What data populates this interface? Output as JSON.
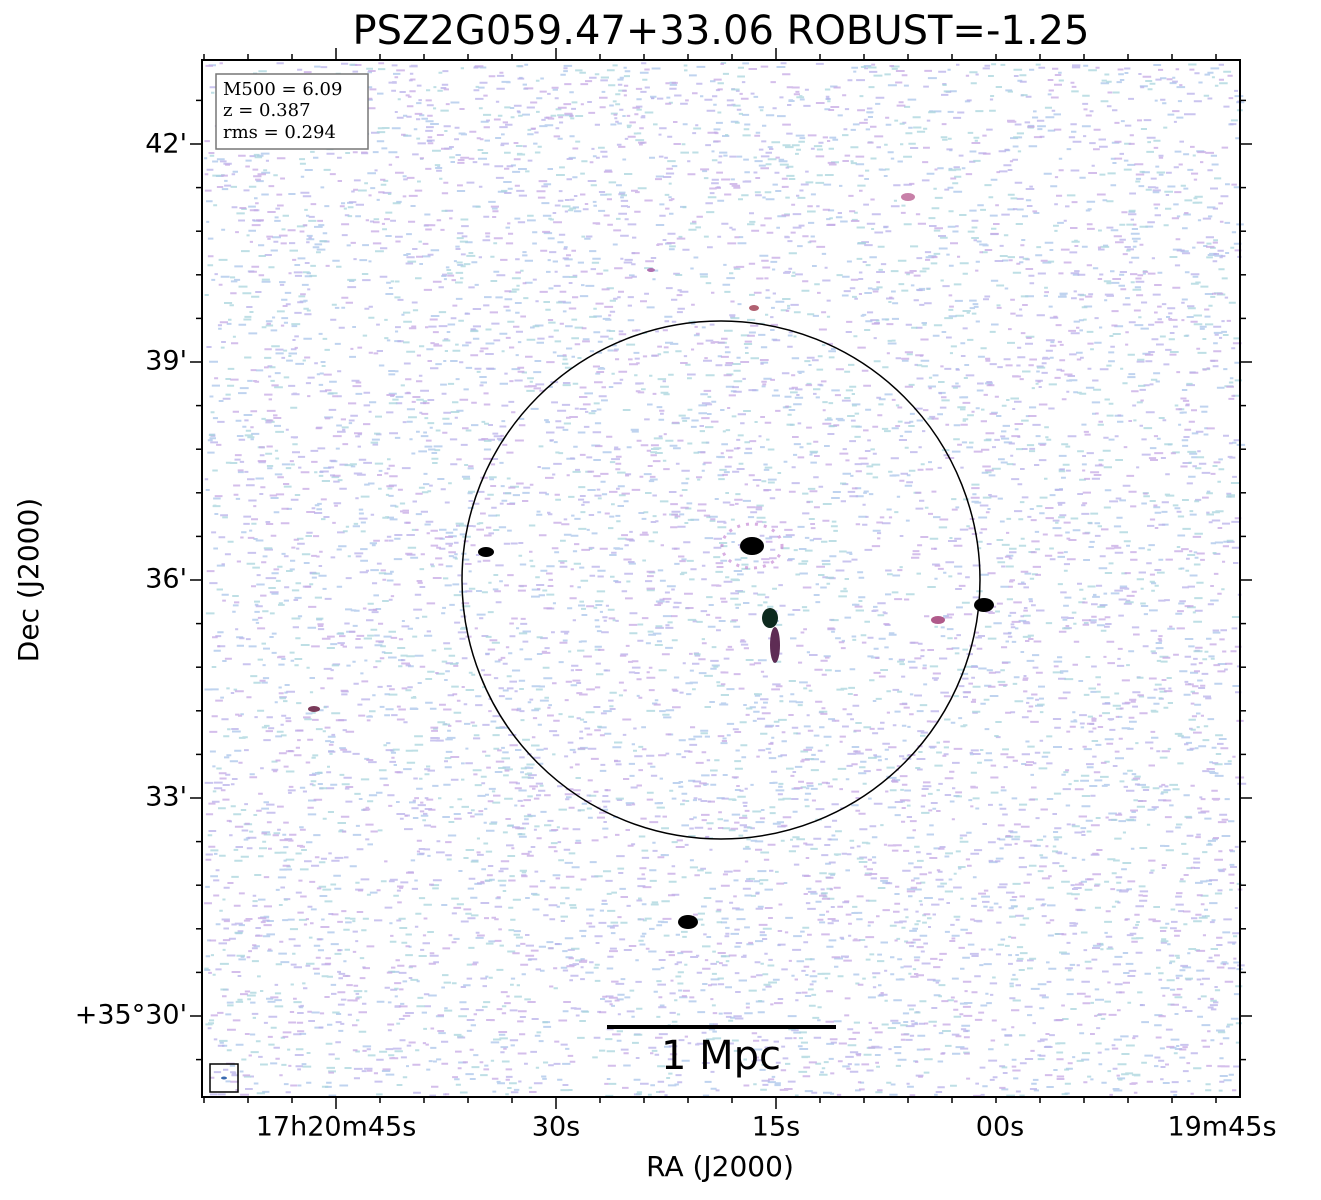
{
  "header": {
    "title": "PSZ2G059.47+33.06 ROBUST=-1.25"
  },
  "axes": {
    "x_label": "RA (J2000)",
    "y_label": "Dec (J2000)",
    "x_tick_labels": [
      "17h20m45s",
      "30s",
      "15s",
      "00s",
      "19m45s"
    ],
    "y_tick_labels": [
      "42'",
      "39'",
      "36'",
      "33'",
      "+35°30'"
    ]
  },
  "info_box": {
    "lines": [
      "M500 = 6.09",
      "z = 0.387",
      "rms = 0.294"
    ]
  },
  "scale_bar": {
    "label": "1 Mpc"
  }
}
